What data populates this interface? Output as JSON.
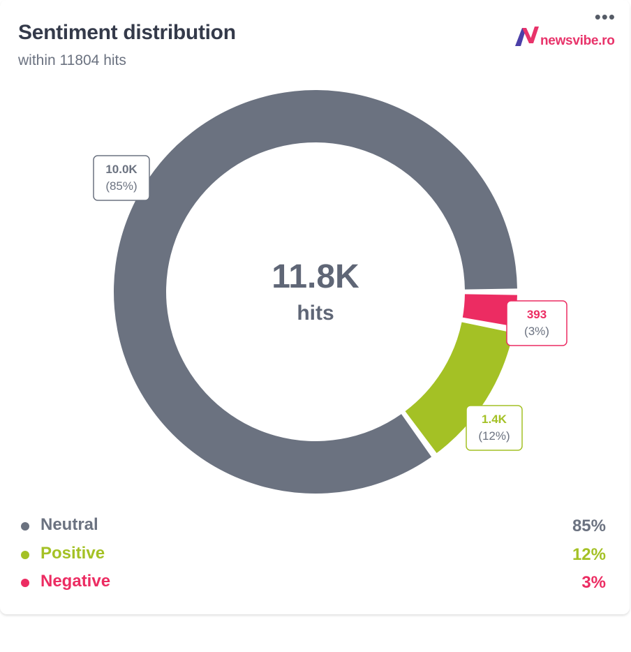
{
  "header": {
    "title": "Sentiment distribution",
    "subtitle": "within 11804 hits",
    "menu_icon": "more-horizontal-icon",
    "logo_text": "newsvibe.ro",
    "logo_icon": "newsvibe-n-logo-icon"
  },
  "center": {
    "value": "11.8K",
    "label": "hits"
  },
  "chart_data": {
    "type": "pie",
    "variant": "donut",
    "total": 11804,
    "categories": [
      "Neutral",
      "Positive",
      "Negative"
    ],
    "values": [
      10000,
      1400,
      393
    ],
    "percent": [
      85,
      12,
      3
    ],
    "data_labels": [
      "10.0K",
      "1.4K",
      "393"
    ],
    "percent_labels": [
      "(85%)",
      "(12%)",
      "(3%)"
    ],
    "colors": [
      "#6b7280",
      "#a4c125",
      "#ec2c62"
    ]
  },
  "legend": {
    "items": [
      {
        "name": "Neutral",
        "value": "85%",
        "color": "#6b7280"
      },
      {
        "name": "Positive",
        "value": "12%",
        "color": "#a4c125"
      },
      {
        "name": "Negative",
        "value": "3%",
        "color": "#ec2c62"
      }
    ]
  }
}
